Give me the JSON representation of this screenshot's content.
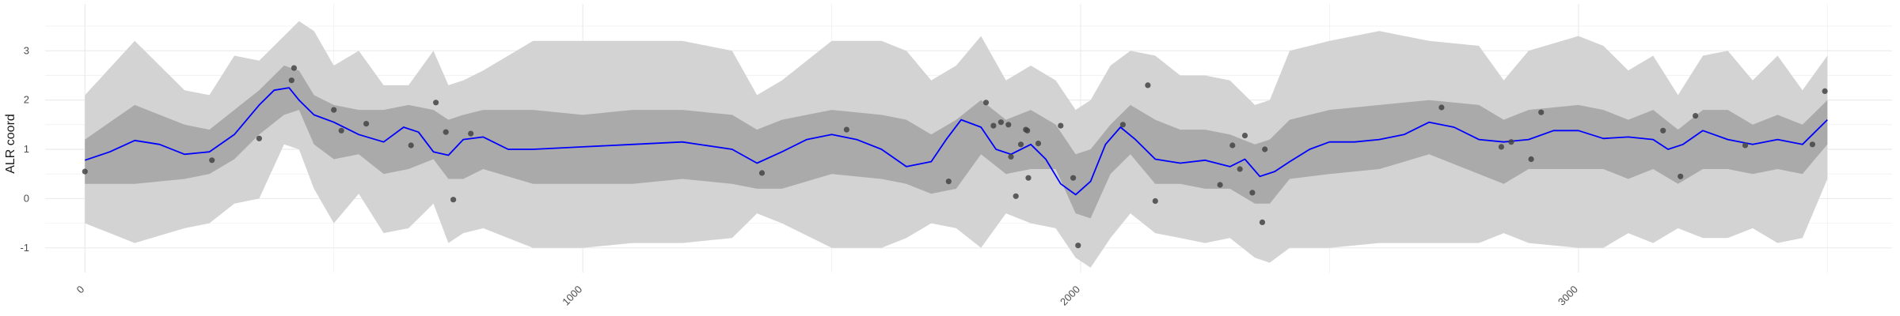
{
  "chart_data": {
    "type": "line",
    "title": "",
    "xlabel": "",
    "ylabel": "ALR coord",
    "xlim": [
      -80,
      3630
    ],
    "ylim": [
      -1.5,
      3.95
    ],
    "grid": true,
    "x_ticks": [
      0,
      1000,
      2000,
      3000
    ],
    "y_ticks": [
      -1,
      0,
      1,
      2,
      3
    ],
    "legend": "none",
    "colors": {
      "mean_line": "#0000ff",
      "inner_band": "#aaaaaa",
      "outer_band": "#d3d3d3",
      "points": "#444444",
      "grid": "#ebebeb"
    },
    "series": [
      {
        "kind": "band-outer",
        "x": [
          0,
          100,
          200,
          250,
          300,
          350,
          400,
          430,
          460,
          500,
          550,
          600,
          650,
          700,
          730,
          760,
          800,
          900,
          1000,
          1100,
          1200,
          1300,
          1350,
          1400,
          1500,
          1600,
          1650,
          1700,
          1750,
          1800,
          1850,
          1900,
          1950,
          1990,
          2020,
          2060,
          2100,
          2150,
          2200,
          2250,
          2300,
          2350,
          2380,
          2420,
          2500,
          2600,
          2700,
          2800,
          2850,
          2900,
          3000,
          3050,
          3100,
          3150,
          3200,
          3250,
          3300,
          3350,
          3400,
          3450,
          3500
        ],
        "upper": [
          2.1,
          3.2,
          2.2,
          2.1,
          2.9,
          2.8,
          3.3,
          3.6,
          3.4,
          2.7,
          3.0,
          2.3,
          2.3,
          3.0,
          2.3,
          2.4,
          2.6,
          3.2,
          3.2,
          3.2,
          3.2,
          3.0,
          2.1,
          2.4,
          3.2,
          3.2,
          3.0,
          2.4,
          2.7,
          3.3,
          2.4,
          2.7,
          2.4,
          1.8,
          2.0,
          2.7,
          3.0,
          2.9,
          2.5,
          2.5,
          2.4,
          1.9,
          2.0,
          3.0,
          3.2,
          3.4,
          3.2,
          3.1,
          2.4,
          3.0,
          3.3,
          3.1,
          2.6,
          2.9,
          2.1,
          2.9,
          3.0,
          2.4,
          2.9,
          2.2,
          2.9
        ],
        "lower": [
          -0.5,
          -0.9,
          -0.6,
          -0.5,
          -0.1,
          0.0,
          1.1,
          1.0,
          0.2,
          -0.5,
          0.1,
          -0.7,
          -0.6,
          -0.1,
          -0.9,
          -0.7,
          -0.6,
          -1.0,
          -1.0,
          -0.9,
          -0.9,
          -0.8,
          -0.3,
          -0.5,
          -1.0,
          -1.0,
          -0.8,
          -0.5,
          -0.6,
          -1.0,
          -0.3,
          -0.5,
          -0.6,
          -1.2,
          -1.4,
          -0.8,
          -0.3,
          -0.7,
          -0.8,
          -0.9,
          -0.8,
          -1.2,
          -1.3,
          -1.0,
          -1.0,
          -0.9,
          -0.9,
          -0.9,
          -0.7,
          -0.9,
          -1.0,
          -1.0,
          -0.7,
          -0.9,
          -0.6,
          -0.8,
          -0.8,
          -0.6,
          -0.9,
          -0.8,
          0.4
        ]
      },
      {
        "kind": "band-inner",
        "x": [
          0,
          100,
          200,
          250,
          300,
          350,
          400,
          430,
          460,
          500,
          550,
          600,
          650,
          700,
          730,
          760,
          800,
          900,
          1000,
          1100,
          1200,
          1300,
          1350,
          1400,
          1500,
          1600,
          1650,
          1700,
          1750,
          1800,
          1850,
          1900,
          1950,
          1990,
          2020,
          2060,
          2100,
          2150,
          2200,
          2250,
          2300,
          2350,
          2380,
          2420,
          2500,
          2600,
          2700,
          2800,
          2850,
          2900,
          3000,
          3050,
          3100,
          3150,
          3200,
          3250,
          3300,
          3350,
          3400,
          3450,
          3500
        ],
        "upper": [
          1.2,
          1.9,
          1.5,
          1.4,
          1.8,
          2.2,
          2.7,
          2.6,
          2.1,
          1.9,
          1.8,
          1.8,
          1.9,
          1.8,
          1.6,
          1.7,
          1.8,
          1.8,
          1.7,
          1.8,
          1.8,
          1.7,
          1.4,
          1.6,
          1.8,
          1.7,
          1.6,
          1.3,
          1.6,
          2.0,
          1.6,
          1.8,
          1.5,
          0.9,
          1.0,
          1.5,
          1.9,
          1.6,
          1.4,
          1.4,
          1.3,
          1.1,
          1.2,
          1.6,
          1.8,
          1.9,
          2.0,
          1.9,
          1.6,
          1.8,
          1.9,
          1.8,
          1.6,
          1.8,
          1.4,
          1.8,
          1.8,
          1.5,
          1.7,
          1.5,
          2.0
        ],
        "lower": [
          0.3,
          0.3,
          0.4,
          0.5,
          0.8,
          1.3,
          1.7,
          1.8,
          1.1,
          0.8,
          0.9,
          0.5,
          0.6,
          0.8,
          0.4,
          0.4,
          0.6,
          0.3,
          0.3,
          0.3,
          0.4,
          0.3,
          0.2,
          0.2,
          0.5,
          0.4,
          0.3,
          0.1,
          0.2,
          0.9,
          0.5,
          0.6,
          0.6,
          -0.3,
          -0.4,
          0.5,
          0.9,
          0.3,
          0.3,
          0.2,
          0.2,
          -0.1,
          -0.1,
          0.4,
          0.5,
          0.6,
          0.9,
          0.5,
          0.3,
          0.6,
          0.6,
          0.6,
          0.4,
          0.6,
          0.3,
          0.6,
          0.6,
          0.5,
          0.6,
          0.5,
          1.1
        ]
      },
      {
        "kind": "mean",
        "x": [
          0,
          50,
          100,
          150,
          200,
          250,
          300,
          350,
          380,
          410,
          430,
          460,
          500,
          550,
          600,
          640,
          670,
          700,
          730,
          760,
          800,
          850,
          900,
          1000,
          1100,
          1200,
          1300,
          1350,
          1400,
          1450,
          1500,
          1550,
          1600,
          1650,
          1700,
          1730,
          1760,
          1800,
          1830,
          1860,
          1900,
          1930,
          1960,
          1990,
          2020,
          2050,
          2080,
          2110,
          2150,
          2200,
          2250,
          2300,
          2330,
          2360,
          2390,
          2420,
          2460,
          2500,
          2550,
          2600,
          2650,
          2700,
          2750,
          2800,
          2850,
          2900,
          2950,
          3000,
          3050,
          3100,
          3150,
          3180,
          3210,
          3250,
          3300,
          3350,
          3400,
          3450,
          3500
        ],
        "y": [
          0.78,
          0.95,
          1.18,
          1.1,
          0.9,
          0.95,
          1.3,
          1.9,
          2.2,
          2.25,
          2.0,
          1.7,
          1.55,
          1.3,
          1.15,
          1.45,
          1.35,
          0.95,
          0.88,
          1.2,
          1.25,
          1.0,
          1.0,
          1.05,
          1.1,
          1.15,
          1.0,
          0.72,
          0.95,
          1.2,
          1.3,
          1.2,
          1.0,
          0.65,
          0.75,
          1.2,
          1.6,
          1.45,
          1.0,
          0.9,
          1.1,
          0.8,
          0.3,
          0.08,
          0.35,
          1.1,
          1.45,
          1.2,
          0.8,
          0.72,
          0.78,
          0.65,
          0.8,
          0.45,
          0.55,
          0.75,
          1.0,
          1.15,
          1.15,
          1.2,
          1.3,
          1.55,
          1.45,
          1.2,
          1.15,
          1.2,
          1.38,
          1.38,
          1.22,
          1.25,
          1.2,
          1.0,
          1.1,
          1.38,
          1.2,
          1.1,
          1.2,
          1.1,
          1.6
        ]
      }
    ],
    "points": [
      {
        "x": 0,
        "y": 0.55
      },
      {
        "x": 255,
        "y": 0.78
      },
      {
        "x": 350,
        "y": 1.22
      },
      {
        "x": 415,
        "y": 2.4
      },
      {
        "x": 420,
        "y": 2.65
      },
      {
        "x": 500,
        "y": 1.8
      },
      {
        "x": 515,
        "y": 1.38
      },
      {
        "x": 565,
        "y": 1.52
      },
      {
        "x": 655,
        "y": 1.08
      },
      {
        "x": 705,
        "y": 1.95
      },
      {
        "x": 725,
        "y": 1.35
      },
      {
        "x": 740,
        "y": -0.02
      },
      {
        "x": 775,
        "y": 1.32
      },
      {
        "x": 1360,
        "y": 0.52
      },
      {
        "x": 1530,
        "y": 1.4
      },
      {
        "x": 1735,
        "y": 0.35
      },
      {
        "x": 1810,
        "y": 1.95
      },
      {
        "x": 1825,
        "y": 1.48
      },
      {
        "x": 1840,
        "y": 1.55
      },
      {
        "x": 1855,
        "y": 1.5
      },
      {
        "x": 1860,
        "y": 0.85
      },
      {
        "x": 1870,
        "y": 0.05
      },
      {
        "x": 1880,
        "y": 1.1
      },
      {
        "x": 1890,
        "y": 1.4
      },
      {
        "x": 1893,
        "y": 1.38
      },
      {
        "x": 1895,
        "y": 0.42
      },
      {
        "x": 1915,
        "y": 1.12
      },
      {
        "x": 1960,
        "y": 1.48
      },
      {
        "x": 1985,
        "y": 0.42
      },
      {
        "x": 1995,
        "y": -0.95
      },
      {
        "x": 2085,
        "y": 1.5
      },
      {
        "x": 2135,
        "y": 2.3
      },
      {
        "x": 2150,
        "y": -0.05
      },
      {
        "x": 2280,
        "y": 0.28
      },
      {
        "x": 2305,
        "y": 1.08
      },
      {
        "x": 2320,
        "y": 0.6
      },
      {
        "x": 2330,
        "y": 1.28
      },
      {
        "x": 2345,
        "y": 0.12
      },
      {
        "x": 2365,
        "y": -0.48
      },
      {
        "x": 2370,
        "y": 1.0
      },
      {
        "x": 2725,
        "y": 1.85
      },
      {
        "x": 2845,
        "y": 1.05
      },
      {
        "x": 2865,
        "y": 1.15
      },
      {
        "x": 2905,
        "y": 0.8
      },
      {
        "x": 2925,
        "y": 1.75
      },
      {
        "x": 3170,
        "y": 1.38
      },
      {
        "x": 3205,
        "y": 0.45
      },
      {
        "x": 3235,
        "y": 1.68
      },
      {
        "x": 3335,
        "y": 1.08
      },
      {
        "x": 3470,
        "y": 1.1
      },
      {
        "x": 3495,
        "y": 2.18
      }
    ]
  }
}
